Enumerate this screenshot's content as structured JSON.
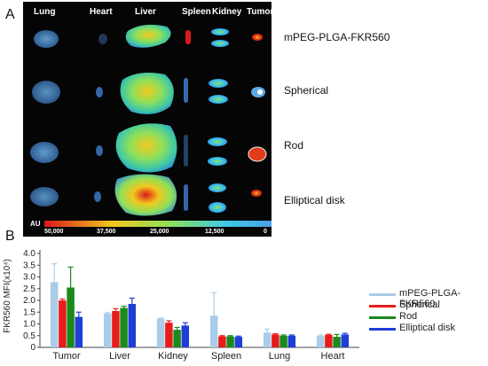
{
  "panel_a": {
    "letter": "A",
    "organs": [
      "Lung",
      "Heart",
      "Liver",
      "Spleen",
      "Kidney",
      "Tumor"
    ],
    "rows": [
      "mPEG-PLGA-FKR560",
      "Spherical",
      "Rod",
      "Elliptical disk"
    ],
    "colorbar": {
      "unit": "AU",
      "ticks": [
        "50,000",
        "37,500",
        "25,000",
        "12,500",
        "0"
      ],
      "colors": [
        "#d91a1a",
        "#f2c81e",
        "#8fe05a",
        "#3ec8e6",
        "#4aa0e6"
      ]
    }
  },
  "panel_b": {
    "letter": "B"
  },
  "chart_data": {
    "type": "bar",
    "categories": [
      "Tumor",
      "Liver",
      "Kidney",
      "Spleen",
      "Lung",
      "Heart"
    ],
    "ylabel": "FKR560 MFI(x10⁴)",
    "ylim": [
      0,
      4.0
    ],
    "yticks": [
      "0",
      "0.5",
      "1.0",
      "1.5",
      "2.0",
      "2.5",
      "3.0",
      "3.5",
      "4.0"
    ],
    "series": [
      {
        "name": "mPEG-PLGA-FKR560",
        "color": "#a9cce8",
        "values": [
          2.78,
          1.44,
          1.22,
          1.35,
          0.63,
          0.48
        ],
        "errors": [
          0.78,
          0.04,
          0.03,
          0.98,
          0.15,
          0.05
        ]
      },
      {
        "name": "Spherical",
        "color": "#e81b1b",
        "values": [
          2.0,
          1.55,
          1.05,
          0.47,
          0.55,
          0.53
        ],
        "errors": [
          0.06,
          0.1,
          0.08,
          0.03,
          0.03,
          0.03
        ]
      },
      {
        "name": "Rod",
        "color": "#1a8a1a",
        "values": [
          2.55,
          1.68,
          0.75,
          0.47,
          0.5,
          0.45
        ],
        "errors": [
          0.87,
          0.07,
          0.1,
          0.03,
          0.03,
          0.1
        ]
      },
      {
        "name": "Elliptical disk",
        "color": "#1f3ed6",
        "values": [
          1.3,
          1.85,
          0.93,
          0.45,
          0.5,
          0.55
        ],
        "errors": [
          0.2,
          0.25,
          0.12,
          0.03,
          0.03,
          0.05
        ]
      }
    ],
    "legend_position": "right"
  }
}
